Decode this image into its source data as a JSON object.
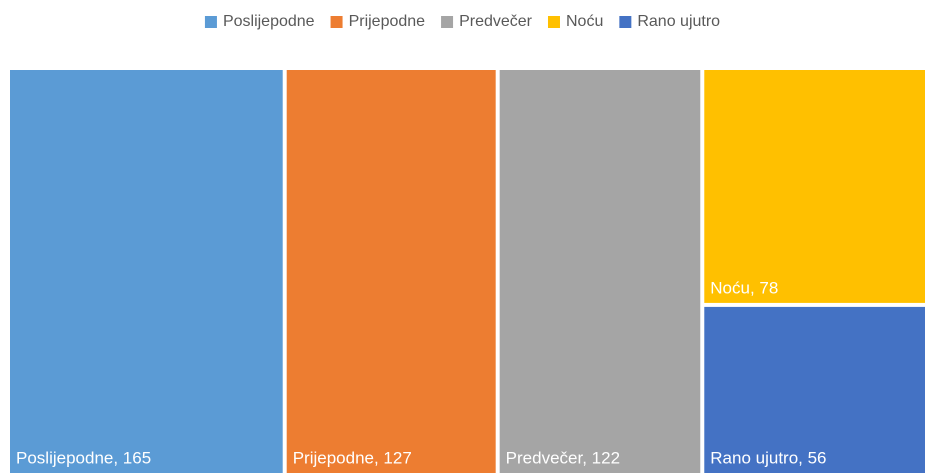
{
  "chart_data": {
    "type": "treemap",
    "categories": [
      "Poslijepodne",
      "Prijepodne",
      "Predvečer",
      "Noću",
      "Rano ujutro"
    ],
    "values": [
      165,
      127,
      122,
      78,
      56
    ],
    "value_labels": [
      "Poslijepodne, 165",
      "Prijepodne, 127",
      "Predvečer, 122",
      "Noću, 78",
      "Rano ujutro, 56"
    ],
    "colors": [
      "#5b9bd5",
      "#ed7d31",
      "#a5a5a5",
      "#ffc000",
      "#4472c4"
    ],
    "legend": "top"
  }
}
